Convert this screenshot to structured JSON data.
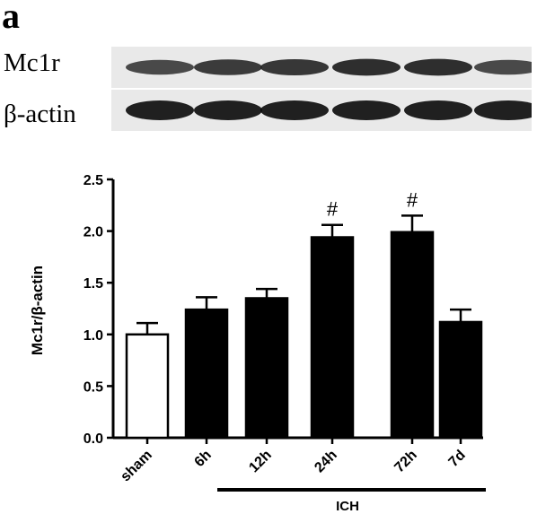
{
  "panel_label": "a",
  "blot": {
    "rows": [
      {
        "label": "Mc1r",
        "band_intensity": [
          0.55,
          0.7,
          0.75,
          0.85,
          0.85,
          0.55
        ]
      },
      {
        "label": "β-actin",
        "band_intensity": [
          1.0,
          1.0,
          1.0,
          1.0,
          1.0,
          1.0
        ]
      }
    ]
  },
  "chart_data": {
    "type": "bar",
    "categories": [
      "sham",
      "6h",
      "12h",
      "24h",
      "72h",
      "7d"
    ],
    "values": [
      1.0,
      1.24,
      1.35,
      1.94,
      1.99,
      1.12
    ],
    "errors": [
      0.11,
      0.12,
      0.09,
      0.12,
      0.16,
      0.12
    ],
    "annotations": [
      "",
      "",
      "",
      "#",
      "#",
      ""
    ],
    "bar_fill": [
      "#ffffff",
      "#000000",
      "#000000",
      "#000000",
      "#000000",
      "#000000"
    ],
    "ylabel": "Mc1r/β-actin",
    "ylim": [
      0,
      2.5
    ],
    "yticks": [
      "0.0",
      "0.5",
      "1.0",
      "1.5",
      "2.0",
      "2.5"
    ],
    "group_label": "ICH",
    "grid": false
  }
}
